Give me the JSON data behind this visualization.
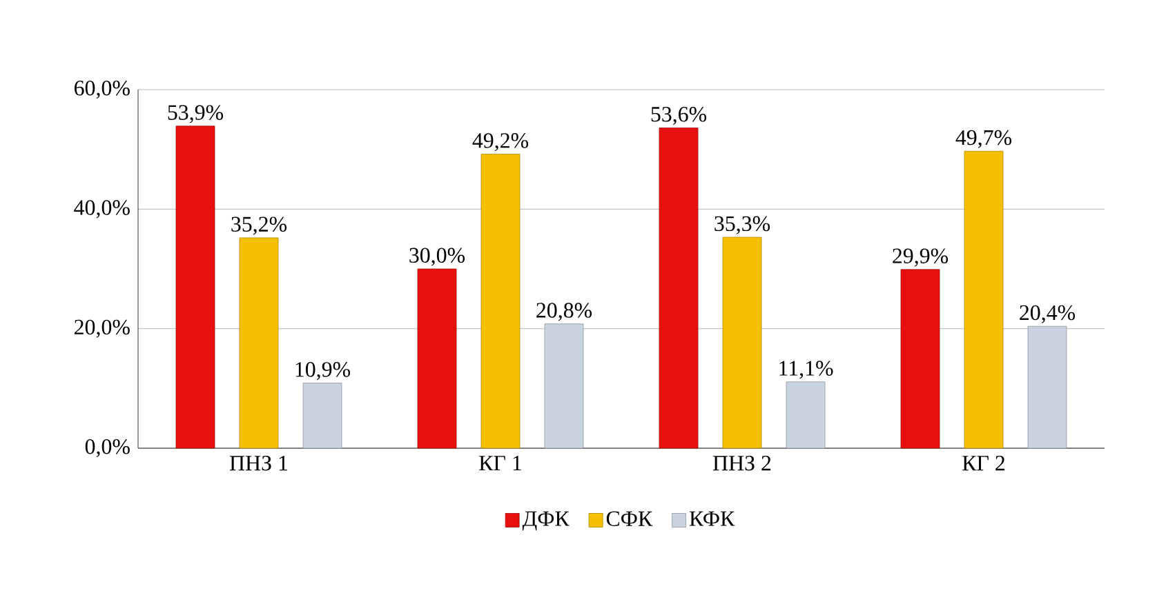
{
  "chart_data": {
    "type": "bar",
    "categories": [
      "ПНЗ 1",
      "КГ 1",
      "ПНЗ 2",
      "КГ 2"
    ],
    "series": [
      {
        "name": "ДФК",
        "color": "#e8100e",
        "values": [
          53.9,
          30.0,
          53.6,
          29.9
        ],
        "value_labels": [
          "53,9%",
          "30,0%",
          "53,6%",
          "29,9%"
        ]
      },
      {
        "name": "СФК",
        "color": "#f5c000",
        "values": [
          35.2,
          49.2,
          35.3,
          49.7
        ],
        "value_labels": [
          "35,2%",
          "49,2%",
          "35,3%",
          "49,7%"
        ]
      },
      {
        "name": "КФК",
        "color": "#c9d3df",
        "values": [
          10.9,
          20.8,
          11.1,
          20.4
        ],
        "value_labels": [
          "10,9%",
          "20,8%",
          "11,1%",
          "20,4%"
        ]
      }
    ],
    "ylim": [
      0,
      60
    ],
    "yticks": [
      {
        "value": 0,
        "label": "0,0%"
      },
      {
        "value": 20,
        "label": "20,0%"
      },
      {
        "value": 40,
        "label": "40,0%"
      },
      {
        "value": 60,
        "label": "60,0%"
      }
    ],
    "grid": "y",
    "legend": "bottom"
  }
}
